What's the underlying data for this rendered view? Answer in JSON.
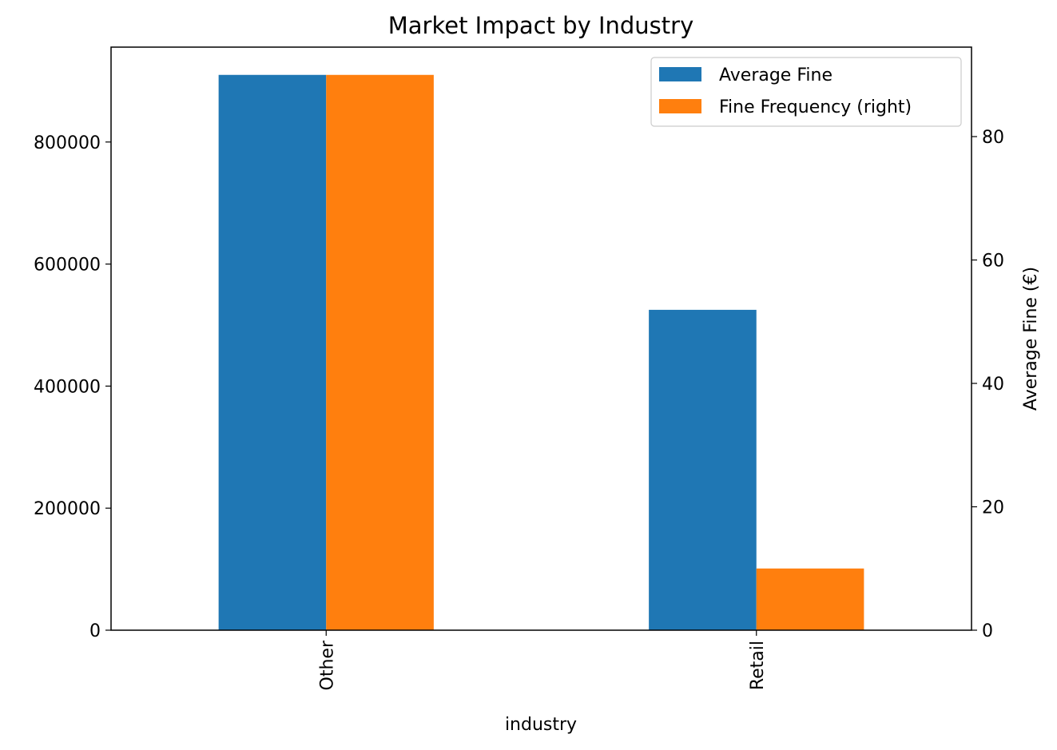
{
  "chart_data": {
    "type": "bar",
    "title": "Market Impact by Industry",
    "xlabel": "industry",
    "ylabel_left": "",
    "ylabel_right": "Average Fine (€)",
    "categories": [
      "Other",
      "Retail"
    ],
    "series": [
      {
        "name": "Average Fine",
        "axis": "left",
        "color": "#1f77b4",
        "values": [
          910000,
          525000
        ]
      },
      {
        "name": "Fine Frequency (right)",
        "axis": "right",
        "color": "#ff7f0e",
        "values": [
          90,
          10
        ]
      }
    ],
    "ylim_left": [
      0,
      955500
    ],
    "ylim_right": [
      0,
      94.5
    ],
    "yticks_left": [
      "0",
      "200000",
      "400000",
      "600000",
      "800000"
    ],
    "yticks_left_values": [
      0,
      200000,
      400000,
      600000,
      800000
    ],
    "yticks_right": [
      "0",
      "20",
      "40",
      "60",
      "80"
    ],
    "yticks_right_values": [
      0,
      20,
      40,
      60,
      80
    ],
    "xtick_rotation": "vertical",
    "legend_position": "top-right",
    "grid": false
  }
}
